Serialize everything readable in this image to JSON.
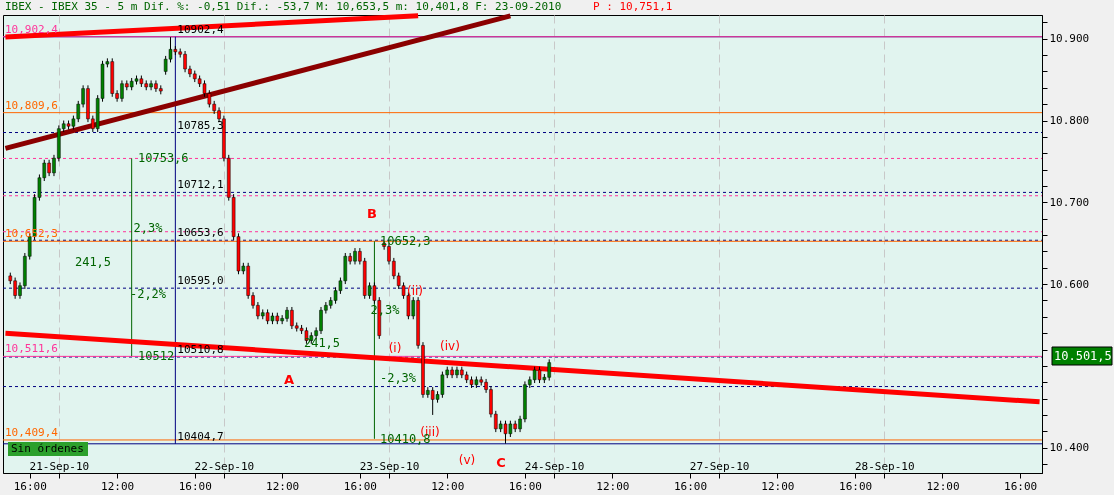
{
  "chart_data": {
    "type": "candlestick",
    "title": "IBEX - IBEX 35 -  5 m Dif. %: -0,51 Dif.: -53,7 M: 10,653,5 m: 10,401,8 F: 23-09-2010",
    "subtitle": "P : 10,751,1",
    "categories": [
      null,
      null,
      null,
      null,
      null,
      "16:00",
      null,
      null,
      null,
      null,
      null,
      "21-Sep-10",
      null,
      null,
      null,
      null,
      null,
      null,
      null,
      null,
      null,
      null,
      null,
      "12:00",
      null,
      null,
      null,
      null,
      null,
      null,
      null,
      null,
      null,
      null,
      null,
      null,
      null,
      null,
      null,
      "16:00",
      null,
      null,
      null,
      null,
      null,
      "22-Sep-10",
      null,
      null,
      null,
      null,
      null,
      null,
      null,
      null,
      null,
      null,
      null,
      "12:00",
      null,
      null,
      null,
      null,
      null,
      null,
      null,
      null,
      null,
      null,
      null,
      null,
      null,
      null,
      null,
      "16:00",
      null,
      null,
      null,
      null,
      null,
      "23-Sep-10",
      null,
      null,
      null,
      null,
      null,
      null,
      null,
      null,
      null,
      null,
      null,
      "12:00",
      null,
      null,
      null,
      null,
      null,
      null,
      null,
      null,
      null,
      null,
      null,
      null,
      null,
      null,
      null,
      "16:00",
      null,
      null,
      null,
      null,
      null,
      "24-Sep-10",
      null,
      null,
      null,
      null,
      null,
      null,
      null,
      null,
      null,
      null,
      null,
      "12:00",
      null,
      null,
      null,
      null,
      null,
      null,
      null,
      null,
      null,
      null,
      null,
      null,
      null,
      null,
      null,
      "16:00",
      null,
      null,
      null,
      null,
      null,
      "27-Sep-10",
      null,
      null,
      null,
      null,
      null,
      null,
      null,
      null,
      null,
      null,
      null,
      "12:00",
      null,
      null,
      null,
      null,
      null,
      null,
      null,
      null,
      null,
      null,
      null,
      null,
      null,
      null,
      null,
      "16:00",
      null,
      null,
      null,
      null,
      null,
      "28-Sep-10",
      null,
      null,
      null,
      null,
      null,
      null,
      null,
      null,
      null,
      null,
      null,
      "12:00",
      null,
      null,
      null,
      null,
      null,
      null,
      null,
      null,
      null,
      null,
      null,
      null,
      null,
      null,
      null,
      "16:00",
      null,
      null,
      null,
      null
    ],
    "ylim": [
      10369,
      10929
    ],
    "yticks": [
      {
        "value": 10380,
        "label": null
      },
      {
        "value": 10400,
        "label": "10.400"
      },
      {
        "value": 10420,
        "label": null
      },
      {
        "value": 10440,
        "label": null
      },
      {
        "value": 10460,
        "label": null
      },
      {
        "value": 10480,
        "label": null
      },
      {
        "value": 10500,
        "label": null
      },
      {
        "value": 10520,
        "label": null
      },
      {
        "value": 10540,
        "label": null
      },
      {
        "value": 10560,
        "label": null
      },
      {
        "value": 10580,
        "label": null
      },
      {
        "value": 10600,
        "label": "10.600"
      },
      {
        "value": 10620,
        "label": null
      },
      {
        "value": 10640,
        "label": null
      },
      {
        "value": 10660,
        "label": null
      },
      {
        "value": 10680,
        "label": null
      },
      {
        "value": 10700,
        "label": "10.700"
      },
      {
        "value": 10720,
        "label": null
      },
      {
        "value": 10740,
        "label": null
      },
      {
        "value": 10760,
        "label": null
      },
      {
        "value": 10780,
        "label": null
      },
      {
        "value": 10800,
        "label": "10.800"
      },
      {
        "value": 10820,
        "label": null
      },
      {
        "value": 10840,
        "label": null
      },
      {
        "value": 10860,
        "label": null
      },
      {
        "value": 10880,
        "label": null
      },
      {
        "value": 10900,
        "label": "10.900"
      },
      {
        "value": 10920,
        "label": null
      }
    ],
    "grid": "x",
    "series": [
      {
        "ohlc": [
          null,
          [
            10610,
            10614,
            10600,
            10604
          ],
          [
            10604,
            10608,
            10582,
            10586
          ],
          [
            10586,
            10602,
            10582,
            10598
          ],
          [
            10598,
            10638,
            10594,
            10634
          ],
          [
            10634,
            10662,
            10630,
            10658
          ],
          [
            10658,
            10710,
            10654,
            10706
          ],
          [
            10706,
            10734,
            10702,
            10730
          ],
          [
            10730,
            10752,
            10726,
            10748
          ],
          [
            10748,
            10752,
            10732,
            10736
          ],
          [
            10736,
            10758,
            10732,
            10754
          ],
          [
            10754,
            10794,
            10750,
            10790
          ],
          [
            10790,
            10800,
            10786,
            10796
          ],
          [
            10796,
            10800,
            10789,
            10793
          ],
          [
            10793,
            10806,
            10789,
            10802
          ],
          [
            10802,
            10824,
            10798,
            10820
          ],
          [
            10820,
            10843,
            10816,
            10839
          ],
          [
            10839,
            10843,
            10798,
            10802
          ],
          [
            10802,
            10806,
            10786,
            10790
          ],
          [
            10790,
            10831,
            10786,
            10827
          ],
          [
            10827,
            10873,
            10823,
            10869
          ],
          [
            10869,
            10876,
            10865,
            10872
          ],
          [
            10872,
            10876,
            10829,
            10833
          ],
          [
            10833,
            10837,
            10823,
            10827
          ],
          [
            10827,
            10849,
            10823,
            10845
          ],
          [
            10845,
            10849,
            10837,
            10841
          ],
          [
            10841,
            10852,
            10837,
            10848
          ],
          [
            10848,
            10855,
            10844,
            10851
          ],
          [
            10851,
            10855,
            10841,
            10845
          ],
          [
            10845,
            10849,
            10837,
            10841
          ],
          [
            10841,
            10849,
            10837,
            10845
          ],
          [
            10845,
            10849,
            10835,
            10839
          ],
          [
            10839,
            10843,
            10832,
            10836
          ],
          [
            10860,
            10879,
            10856,
            10875
          ],
          [
            10875,
            10902,
            10871,
            10887
          ],
          [
            10887,
            10891,
            10880,
            10884
          ],
          [
            10884,
            10888,
            10877,
            10881
          ],
          [
            10881,
            10885,
            10859,
            10863
          ],
          [
            10863,
            10867,
            10853,
            10857
          ],
          [
            10857,
            10861,
            10847,
            10851
          ],
          [
            10851,
            10855,
            10841,
            10845
          ],
          [
            10845,
            10849,
            10829,
            10833
          ],
          [
            10833,
            10837,
            10816,
            10820
          ],
          [
            10820,
            10824,
            10808,
            10812
          ],
          [
            10812,
            10816,
            10798,
            10802
          ],
          [
            10802,
            10806,
            10750,
            10754
          ],
          [
            10754,
            10758,
            10702,
            10706
          ],
          [
            10706,
            10710,
            10654,
            10658
          ],
          [
            10658,
            10662,
            10612,
            10616
          ],
          [
            10616,
            10626,
            10612,
            10622
          ],
          [
            10622,
            10626,
            10582,
            10586
          ],
          [
            10586,
            10590,
            10570,
            10574
          ],
          [
            10574,
            10578,
            10557,
            10561
          ],
          [
            10561,
            10569,
            10557,
            10565
          ],
          [
            10565,
            10569,
            10551,
            10555
          ],
          [
            10555,
            10565,
            10551,
            10561
          ],
          [
            10561,
            10565,
            10551,
            10555
          ],
          [
            10555,
            10562,
            10551,
            10558
          ],
          [
            10558,
            10572,
            10554,
            10568
          ],
          [
            10568,
            10572,
            10545,
            10549
          ],
          [
            10549,
            10553,
            10542,
            10546
          ],
          [
            10546,
            10550,
            10539,
            10543
          ],
          [
            10543,
            10547,
            10527,
            10531
          ],
          [
            10531,
            10541,
            10527,
            10537
          ],
          [
            10537,
            10547,
            10533,
            10543
          ],
          [
            10543,
            10572,
            10539,
            10568
          ],
          [
            10568,
            10578,
            10564,
            10574
          ],
          [
            10574,
            10584,
            10570,
            10580
          ],
          [
            10580,
            10596,
            10576,
            10592
          ],
          [
            10592,
            10608,
            10588,
            10604
          ],
          [
            10604,
            10638,
            10600,
            10634
          ],
          [
            10634,
            10638,
            10624,
            10628
          ],
          [
            10628,
            10644,
            10624,
            10640
          ],
          [
            10640,
            10644,
            10624,
            10628
          ],
          [
            10628,
            10632,
            10582,
            10586
          ],
          [
            10586,
            10602,
            10582,
            10598
          ],
          [
            10598,
            10602,
            10576,
            10580
          ],
          [
            10580,
            10584,
            10533,
            10537
          ],
          [
            10650,
            10652,
            10642,
            10646
          ],
          [
            10646,
            10650,
            10624,
            10628
          ],
          [
            10628,
            10632,
            10606,
            10610
          ],
          [
            10610,
            10614,
            10594,
            10598
          ],
          [
            10598,
            10602,
            10582,
            10586
          ],
          [
            10586,
            10590,
            10557,
            10561
          ],
          [
            10561,
            10584,
            10557,
            10580
          ],
          [
            10580,
            10584,
            10521,
            10525
          ],
          [
            10525,
            10529,
            10461,
            10465
          ],
          [
            10465,
            10474,
            10461,
            10470
          ],
          [
            10470,
            10474,
            10440,
            10459
          ],
          [
            10459,
            10469,
            10455,
            10465
          ],
          [
            10465,
            10493,
            10461,
            10489
          ],
          [
            10489,
            10499,
            10485,
            10495
          ],
          [
            10495,
            10499,
            10485,
            10489
          ],
          [
            10489,
            10499,
            10485,
            10495
          ],
          [
            10495,
            10499,
            10485,
            10489
          ],
          [
            10489,
            10493,
            10479,
            10483
          ],
          [
            10483,
            10487,
            10473,
            10477
          ],
          [
            10477,
            10487,
            10473,
            10483
          ],
          [
            10483,
            10487,
            10476,
            10480
          ],
          [
            10480,
            10484,
            10467,
            10471
          ],
          [
            10471,
            10475,
            10437,
            10441
          ],
          [
            10441,
            10445,
            10419,
            10423
          ],
          [
            10423,
            10433,
            10419,
            10429
          ],
          [
            10429,
            10433,
            10405,
            10417
          ],
          [
            10417,
            10433,
            10413,
            10429
          ],
          [
            10429,
            10433,
            10419,
            10423
          ],
          [
            10423,
            10439,
            10419,
            10435
          ],
          [
            10435,
            10481,
            10431,
            10477
          ],
          [
            10477,
            10487,
            10473,
            10483
          ],
          [
            10483,
            10499,
            10479,
            10495
          ],
          [
            10495,
            10499,
            10479,
            10483
          ],
          [
            10483,
            10490,
            10479,
            10486
          ],
          [
            10486,
            10508,
            10482,
            10504
          ],
          null,
          null,
          null,
          null,
          null,
          null,
          null,
          null,
          null,
          null,
          null,
          null,
          null,
          null,
          null,
          null,
          null,
          null,
          null,
          null,
          null,
          null,
          null,
          null,
          null,
          null,
          null,
          null,
          null,
          null,
          null,
          null,
          null,
          null,
          null,
          null,
          null,
          null,
          null,
          null,
          null,
          null,
          null,
          null,
          null,
          null,
          null,
          null,
          null,
          null,
          null,
          null,
          null,
          null,
          null,
          null,
          null,
          null,
          null,
          null,
          null,
          null,
          null,
          null,
          null,
          null,
          null,
          null,
          null,
          null,
          null,
          null,
          null,
          null,
          null,
          null,
          null,
          null,
          null,
          null,
          null,
          null,
          null,
          null,
          null,
          null,
          null,
          null,
          null,
          null,
          null,
          null,
          null,
          null,
          null,
          null,
          null,
          null,
          null,
          null,
          null
        ],
        "colors": [
          null,
          "#ff0000",
          "#ff0000",
          "#008000",
          "#008000",
          "#008000",
          "#008000",
          "#008000",
          "#008000",
          "#ff0000",
          "#008000",
          "#008000",
          "#008000",
          "#ff0000",
          "#008000",
          "#008000",
          "#008000",
          "#ff0000",
          "#ff0000",
          "#008000",
          "#008000",
          "#008000",
          "#ff0000",
          "#ff0000",
          "#008000",
          "#ff0000",
          "#008000",
          "#008000",
          "#ff0000",
          "#ff0000",
          "#008000",
          "#ff0000",
          "#ff0000",
          "#008000",
          "#008000",
          "#ff0000",
          "#ff0000",
          "#ff0000",
          "#ff0000",
          "#ff0000",
          "#ff0000",
          "#ff0000",
          "#ff0000",
          "#ff0000",
          "#ff0000",
          "#ff0000",
          "#ff0000",
          "#ff0000",
          "#ff0000",
          "#008000",
          "#ff0000",
          "#ff0000",
          "#ff0000",
          "#008000",
          "#ff0000",
          "#008000",
          "#ff0000",
          "#008000",
          "#008000",
          "#ff0000",
          "#ff0000",
          "#ff0000",
          "#ff0000",
          "#008000",
          "#008000",
          "#008000",
          "#008000",
          "#008000",
          "#008000",
          "#008000",
          "#008000",
          "#ff0000",
          "#008000",
          "#ff0000",
          "#ff0000",
          "#008000",
          "#ff0000",
          "#ff0000",
          "#ff0000",
          "#ff0000",
          "#ff0000",
          "#ff0000",
          "#ff0000",
          "#ff0000",
          "#008000",
          "#ff0000",
          "#ff0000",
          "#008000",
          "#ff0000",
          "#008000",
          "#008000",
          "#008000",
          "#ff0000",
          "#008000",
          "#ff0000",
          "#ff0000",
          "#ff0000",
          "#008000",
          "#ff0000",
          "#ff0000",
          "#ff0000",
          "#ff0000",
          "#008000",
          "#ff0000",
          "#008000",
          "#ff0000",
          "#008000",
          "#008000",
          "#008000",
          "#008000",
          "#ff0000",
          "#008000",
          "#008000",
          null,
          null,
          null,
          null,
          null,
          null,
          null,
          null,
          null,
          null,
          null,
          null,
          null,
          null,
          null,
          null,
          null,
          null,
          null,
          null,
          null,
          null,
          null,
          null,
          null,
          null,
          null,
          null,
          null,
          null,
          null,
          null,
          null,
          null,
          null,
          null,
          null,
          null,
          null,
          null,
          null,
          null,
          null,
          null,
          null,
          null,
          null,
          null,
          null,
          null,
          null,
          null,
          null,
          null,
          null,
          null,
          null,
          null,
          null,
          null,
          null,
          null,
          null,
          null,
          null,
          null,
          null,
          null,
          null,
          null,
          null,
          null,
          null,
          null,
          null,
          null,
          null,
          null,
          null,
          null,
          null,
          null,
          null,
          null,
          null,
          null,
          null,
          null,
          null,
          null,
          null,
          null,
          null,
          null,
          null,
          null,
          null,
          null,
          null,
          null,
          null
        ]
      },
      {
        "type": "line",
        "color": "#ff0000",
        "values": [
          10902,
          null,
          null,
          null,
          null,
          null,
          null,
          null,
          null,
          null,
          null,
          null,
          null,
          null,
          null,
          null,
          null,
          null,
          null,
          null,
          null,
          null,
          null,
          null,
          null,
          null,
          null,
          null,
          null,
          null,
          null,
          null,
          null,
          null,
          null,
          null,
          null,
          null,
          null,
          null,
          null,
          null,
          null,
          null,
          null,
          null,
          null,
          null,
          null,
          null,
          null,
          null,
          null,
          null,
          null,
          null,
          null,
          null,
          null,
          null,
          null,
          null,
          null,
          null,
          null,
          null,
          null,
          null,
          null,
          null,
          null,
          null,
          null,
          null,
          null,
          null,
          null,
          null,
          null,
          null,
          null,
          null,
          null,
          null,
          null,
          10928,
          null,
          null,
          null,
          null,
          null,
          null,
          null,
          null,
          null,
          null,
          null,
          null,
          null,
          null,
          null,
          null,
          null,
          null,
          null,
          null,
          null,
          null,
          null,
          null,
          null,
          null,
          null,
          null,
          null,
          null,
          null,
          null,
          null,
          null,
          null,
          null,
          null,
          null,
          null,
          null,
          null,
          null,
          null,
          null,
          null,
          null,
          null,
          null,
          null,
          null,
          null,
          null,
          null,
          null,
          null,
          null,
          null,
          null,
          null,
          null,
          null,
          null,
          null,
          null,
          null,
          null,
          null,
          null,
          null,
          null,
          null,
          null,
          null,
          null,
          null,
          null,
          null,
          null,
          null,
          null,
          null,
          null,
          null,
          null,
          null,
          null,
          null,
          null,
          null,
          null,
          null,
          null,
          null,
          null,
          null,
          null,
          null,
          null,
          null,
          null,
          null,
          null,
          null,
          null,
          null,
          null,
          null,
          null,
          null,
          null,
          null,
          null,
          null,
          null,
          null,
          null,
          null,
          null,
          null,
          null,
          null,
          null,
          null,
          null,
          null,
          null,
          null,
          null
        ]
      },
      {
        "type": "line",
        "color": "#8b0000",
        "values": [
          10766,
          null,
          null,
          null,
          null,
          null,
          null,
          null,
          null,
          null,
          null,
          null,
          null,
          null,
          null,
          null,
          null,
          null,
          null,
          null,
          null,
          null,
          null,
          null,
          null,
          null,
          null,
          null,
          null,
          null,
          null,
          null,
          null,
          null,
          null,
          null,
          null,
          null,
          null,
          null,
          null,
          null,
          null,
          null,
          null,
          null,
          null,
          null,
          null,
          null,
          null,
          null,
          null,
          null,
          null,
          null,
          null,
          null,
          null,
          null,
          null,
          null,
          null,
          null,
          null,
          null,
          null,
          null,
          null,
          null,
          null,
          null,
          null,
          null,
          null,
          null,
          null,
          null,
          null,
          null,
          null,
          null,
          null,
          null,
          null,
          null,
          null,
          null,
          null,
          null,
          null,
          null,
          null,
          null,
          null,
          null,
          null,
          null,
          null,
          null,
          null,
          null,
          null,
          null,
          10928,
          null,
          null,
          null,
          null,
          null,
          null,
          null,
          null,
          null,
          null,
          null,
          null,
          null,
          null,
          null,
          null,
          null,
          null,
          null,
          null,
          null,
          null,
          null,
          null,
          null,
          null,
          null,
          null,
          null,
          null,
          null,
          null,
          null,
          null,
          null,
          null,
          null,
          null,
          null,
          null,
          null,
          null,
          null,
          null,
          null,
          null,
          null,
          null,
          null,
          null,
          null,
          null,
          null,
          null,
          null,
          null,
          null,
          null,
          null,
          null,
          null,
          null,
          null,
          null,
          null,
          null,
          null,
          null,
          null,
          null,
          null,
          null,
          null,
          null,
          null,
          null,
          null,
          null,
          null,
          null,
          null,
          null,
          null,
          null,
          null,
          null,
          null,
          null,
          null,
          null,
          null,
          null,
          null,
          null,
          null,
          null,
          null,
          null,
          null,
          null,
          null,
          null,
          null,
          null,
          null,
          null,
          null,
          null,
          null
        ]
      },
      {
        "type": "line",
        "color": "#ff0000",
        "values": [
          10540,
          null,
          null,
          null,
          null,
          null,
          null,
          null,
          null,
          null,
          null,
          null,
          null,
          null,
          null,
          null,
          null,
          null,
          null,
          null,
          null,
          null,
          null,
          null,
          null,
          null,
          null,
          null,
          null,
          null,
          null,
          null,
          null,
          null,
          null,
          null,
          null,
          null,
          null,
          null,
          null,
          null,
          null,
          null,
          null,
          null,
          null,
          null,
          null,
          null,
          null,
          null,
          null,
          null,
          null,
          null,
          null,
          null,
          null,
          null,
          null,
          null,
          null,
          null,
          null,
          null,
          null,
          null,
          null,
          null,
          null,
          null,
          null,
          null,
          null,
          null,
          null,
          null,
          null,
          null,
          null,
          null,
          null,
          null,
          null,
          null,
          null,
          null,
          null,
          null,
          null,
          null,
          null,
          null,
          null,
          null,
          null,
          null,
          null,
          null,
          null,
          null,
          null,
          null,
          null,
          null,
          null,
          null,
          null,
          null,
          null,
          null,
          null,
          null,
          null,
          null,
          null,
          null,
          null,
          null,
          null,
          null,
          null,
          null,
          null,
          null,
          null,
          null,
          null,
          null,
          null,
          null,
          null,
          null,
          null,
          null,
          null,
          null,
          null,
          null,
          null,
          null,
          null,
          null,
          null,
          null,
          null,
          null,
          null,
          null,
          null,
          null,
          null,
          null,
          null,
          null,
          null,
          null,
          null,
          null,
          null,
          null,
          null,
          null,
          null,
          null,
          null,
          null,
          null,
          null,
          null,
          null,
          null,
          null,
          null,
          null,
          null,
          null,
          null,
          null,
          null,
          null,
          null,
          null,
          null,
          null,
          null,
          null,
          null,
          null,
          null,
          null,
          null,
          null,
          null,
          null,
          null,
          null,
          null,
          null,
          null,
          null,
          null,
          null,
          null,
          null,
          null,
          null,
          null,
          null,
          null,
          null,
          null,
          10456
        ]
      }
    ],
    "ref_lines": [
      {
        "axis": "y",
        "value": 10902.4,
        "label": "10902,4",
        "color": "#000080",
        "line_style": "solid"
      },
      {
        "axis": "y",
        "value": 10785.3,
        "label": "10785,3",
        "color": "#000080",
        "line_style": "dashed"
      },
      {
        "axis": "y",
        "value": 10712.1,
        "label": "10712,1",
        "color": "#000080",
        "line_style": "dashed"
      },
      {
        "axis": "y",
        "value": 10653.6,
        "label": "10653,6",
        "color": "#000080",
        "line_style": "dashed"
      },
      {
        "axis": "y",
        "value": 10595.0,
        "label": "10595,0",
        "color": "#000080",
        "line_style": "dashed"
      },
      {
        "axis": "y",
        "value": 10510.8,
        "label": "10510,8",
        "color": "#000080",
        "line_style": "dashed"
      },
      {
        "axis": "y",
        "value": 10474.7,
        "label": null,
        "color": "#000080",
        "line_style": "dashed"
      },
      {
        "axis": "y",
        "value": 10404.7,
        "label": "10404,7",
        "color": "#000080",
        "line_style": "solid"
      },
      {
        "axis": "y",
        "value": 10902.4,
        "label": "10,902,4",
        "color": "#ff3399",
        "line_style": "solid"
      },
      {
        "axis": "y",
        "value": 10809.6,
        "label": "10,809,6",
        "color": "#ff6600",
        "line_style": "solid"
      },
      {
        "axis": "y",
        "value": 10652.3,
        "label": "10,652,3",
        "color": "#ff6600",
        "line_style": "solid"
      },
      {
        "axis": "y",
        "value": 10511.6,
        "label": "10,511,6",
        "color": "#ff3399",
        "line_style": "solid"
      },
      {
        "axis": "y",
        "value": 10409.4,
        "label": "10,409,4",
        "color": "#ff6600",
        "line_style": "solid"
      },
      {
        "axis": "y",
        "value": 10753.6,
        "label": null,
        "color": "#ff3399",
        "line_style": "dashed"
      },
      {
        "axis": "y",
        "value": 10708,
        "label": null,
        "color": "#ff3399",
        "line_style": "dashed"
      },
      {
        "axis": "y",
        "value": 10664,
        "label": null,
        "color": "#ff3399",
        "line_style": "dashed"
      }
    ],
    "annotations": [
      "A",
      "B",
      "C",
      "(i)",
      "(ii)",
      "(iii)",
      "(iv)",
      "(v)",
      "241,5",
      "241,5",
      "2,3%",
      "-2,2%",
      "2,3%",
      "-2,3%",
      {
        "text": "10753,6",
        "y": 10753.6
      },
      {
        "text": "10512",
        "y": 10512
      },
      {
        "text": "10652,3",
        "y": 10652.3
      },
      {
        "text": "10410,8",
        "y": 10410.8
      },
      "10.501,5",
      "Sin órdenes"
    ]
  }
}
